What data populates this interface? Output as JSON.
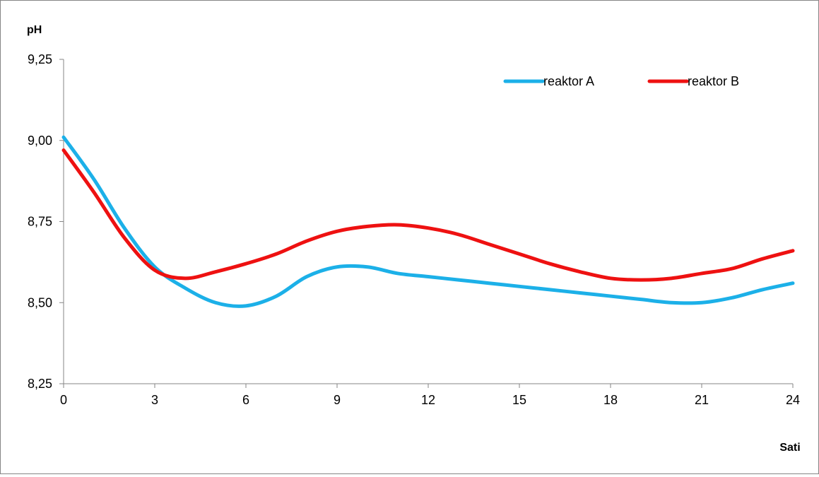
{
  "chart_data": {
    "type": "line",
    "title": "",
    "xlabel": "Sati",
    "ylabel": "pH",
    "xlim": [
      0,
      24
    ],
    "ylim": [
      8.25,
      9.25
    ],
    "x_ticks": [
      "0",
      "3",
      "6",
      "9",
      "12",
      "15",
      "18",
      "21",
      "24"
    ],
    "y_ticks": [
      "8,25",
      "8,50",
      "8,75",
      "9,00",
      "9,25"
    ],
    "grid": false,
    "legend_position": "top-right",
    "series": [
      {
        "name": "reaktor A",
        "color": "#1cb0e8",
        "x": [
          0,
          1,
          2,
          3,
          4,
          5,
          6,
          7,
          8,
          9,
          10,
          11,
          12,
          13,
          14,
          15,
          16,
          17,
          18,
          19,
          20,
          21,
          22,
          23,
          24
        ],
        "values": [
          9.01,
          8.88,
          8.73,
          8.61,
          8.545,
          8.5,
          8.49,
          8.52,
          8.58,
          8.61,
          8.61,
          8.59,
          8.58,
          8.57,
          8.56,
          8.55,
          8.54,
          8.53,
          8.52,
          8.51,
          8.5,
          8.5,
          8.515,
          8.54,
          8.56
        ]
      },
      {
        "name": "reaktor B",
        "color": "#ee1111",
        "x": [
          0,
          1,
          2,
          3,
          4,
          5,
          6,
          7,
          8,
          9,
          10,
          11,
          12,
          13,
          14,
          15,
          16,
          17,
          18,
          19,
          20,
          21,
          22,
          23,
          24
        ],
        "values": [
          8.97,
          8.84,
          8.7,
          8.6,
          8.575,
          8.595,
          8.62,
          8.65,
          8.69,
          8.72,
          8.735,
          8.74,
          8.73,
          8.71,
          8.68,
          8.65,
          8.62,
          8.595,
          8.575,
          8.57,
          8.575,
          8.59,
          8.605,
          8.635,
          8.66
        ]
      }
    ]
  }
}
